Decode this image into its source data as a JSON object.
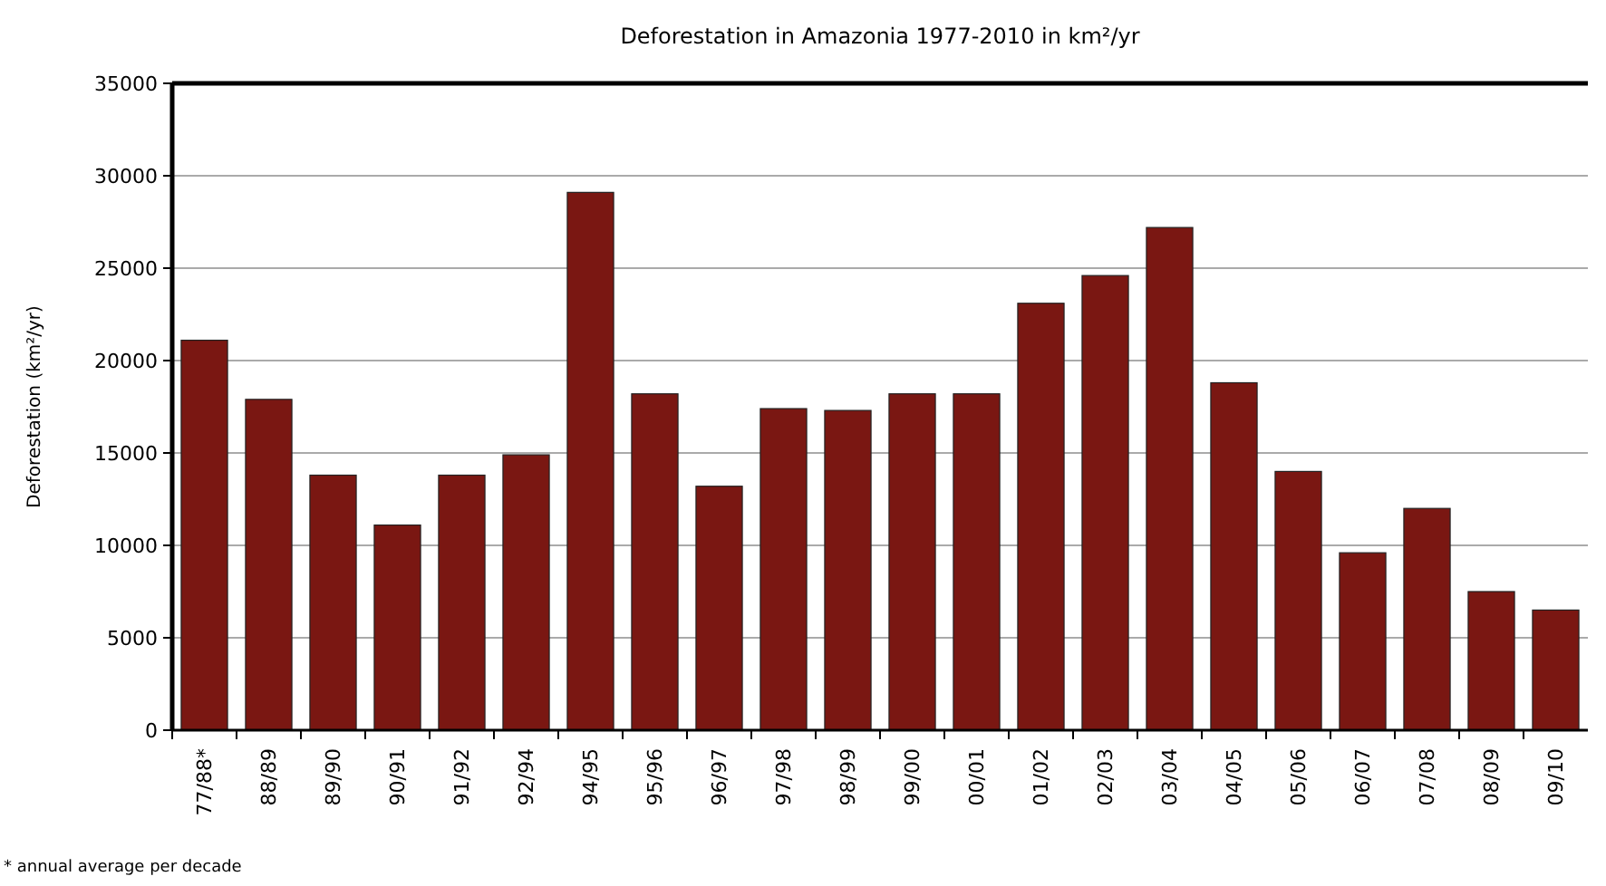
{
  "chart_data": {
    "type": "bar",
    "title": "Deforestation in Amazonia 1977-2010 in km²/yr",
    "ylabel": "Deforestation (km²/yr)",
    "categories": [
      "77/88*",
      "88/89",
      "89/90",
      "90/91",
      "91/92",
      "92/94",
      "94/95",
      "95/96",
      "96/97",
      "97/98",
      "98/99",
      "99/00",
      "00/01",
      "01/02",
      "02/03",
      "03/04",
      "04/05",
      "05/06",
      "06/07",
      "07/08",
      "08/09",
      "09/10"
    ],
    "values": [
      21100,
      17900,
      13800,
      11100,
      13800,
      14900,
      29100,
      18200,
      13200,
      17400,
      17300,
      18200,
      18200,
      23100,
      24600,
      27200,
      18800,
      14000,
      9600,
      12000,
      7500,
      6500
    ],
    "color": "#7a1712",
    "ylim": [
      0,
      35000
    ],
    "yticks": [
      0,
      5000,
      10000,
      15000,
      20000,
      25000,
      30000,
      35000
    ],
    "grid": "y",
    "annotations": [
      "* annual average per decade"
    ]
  }
}
